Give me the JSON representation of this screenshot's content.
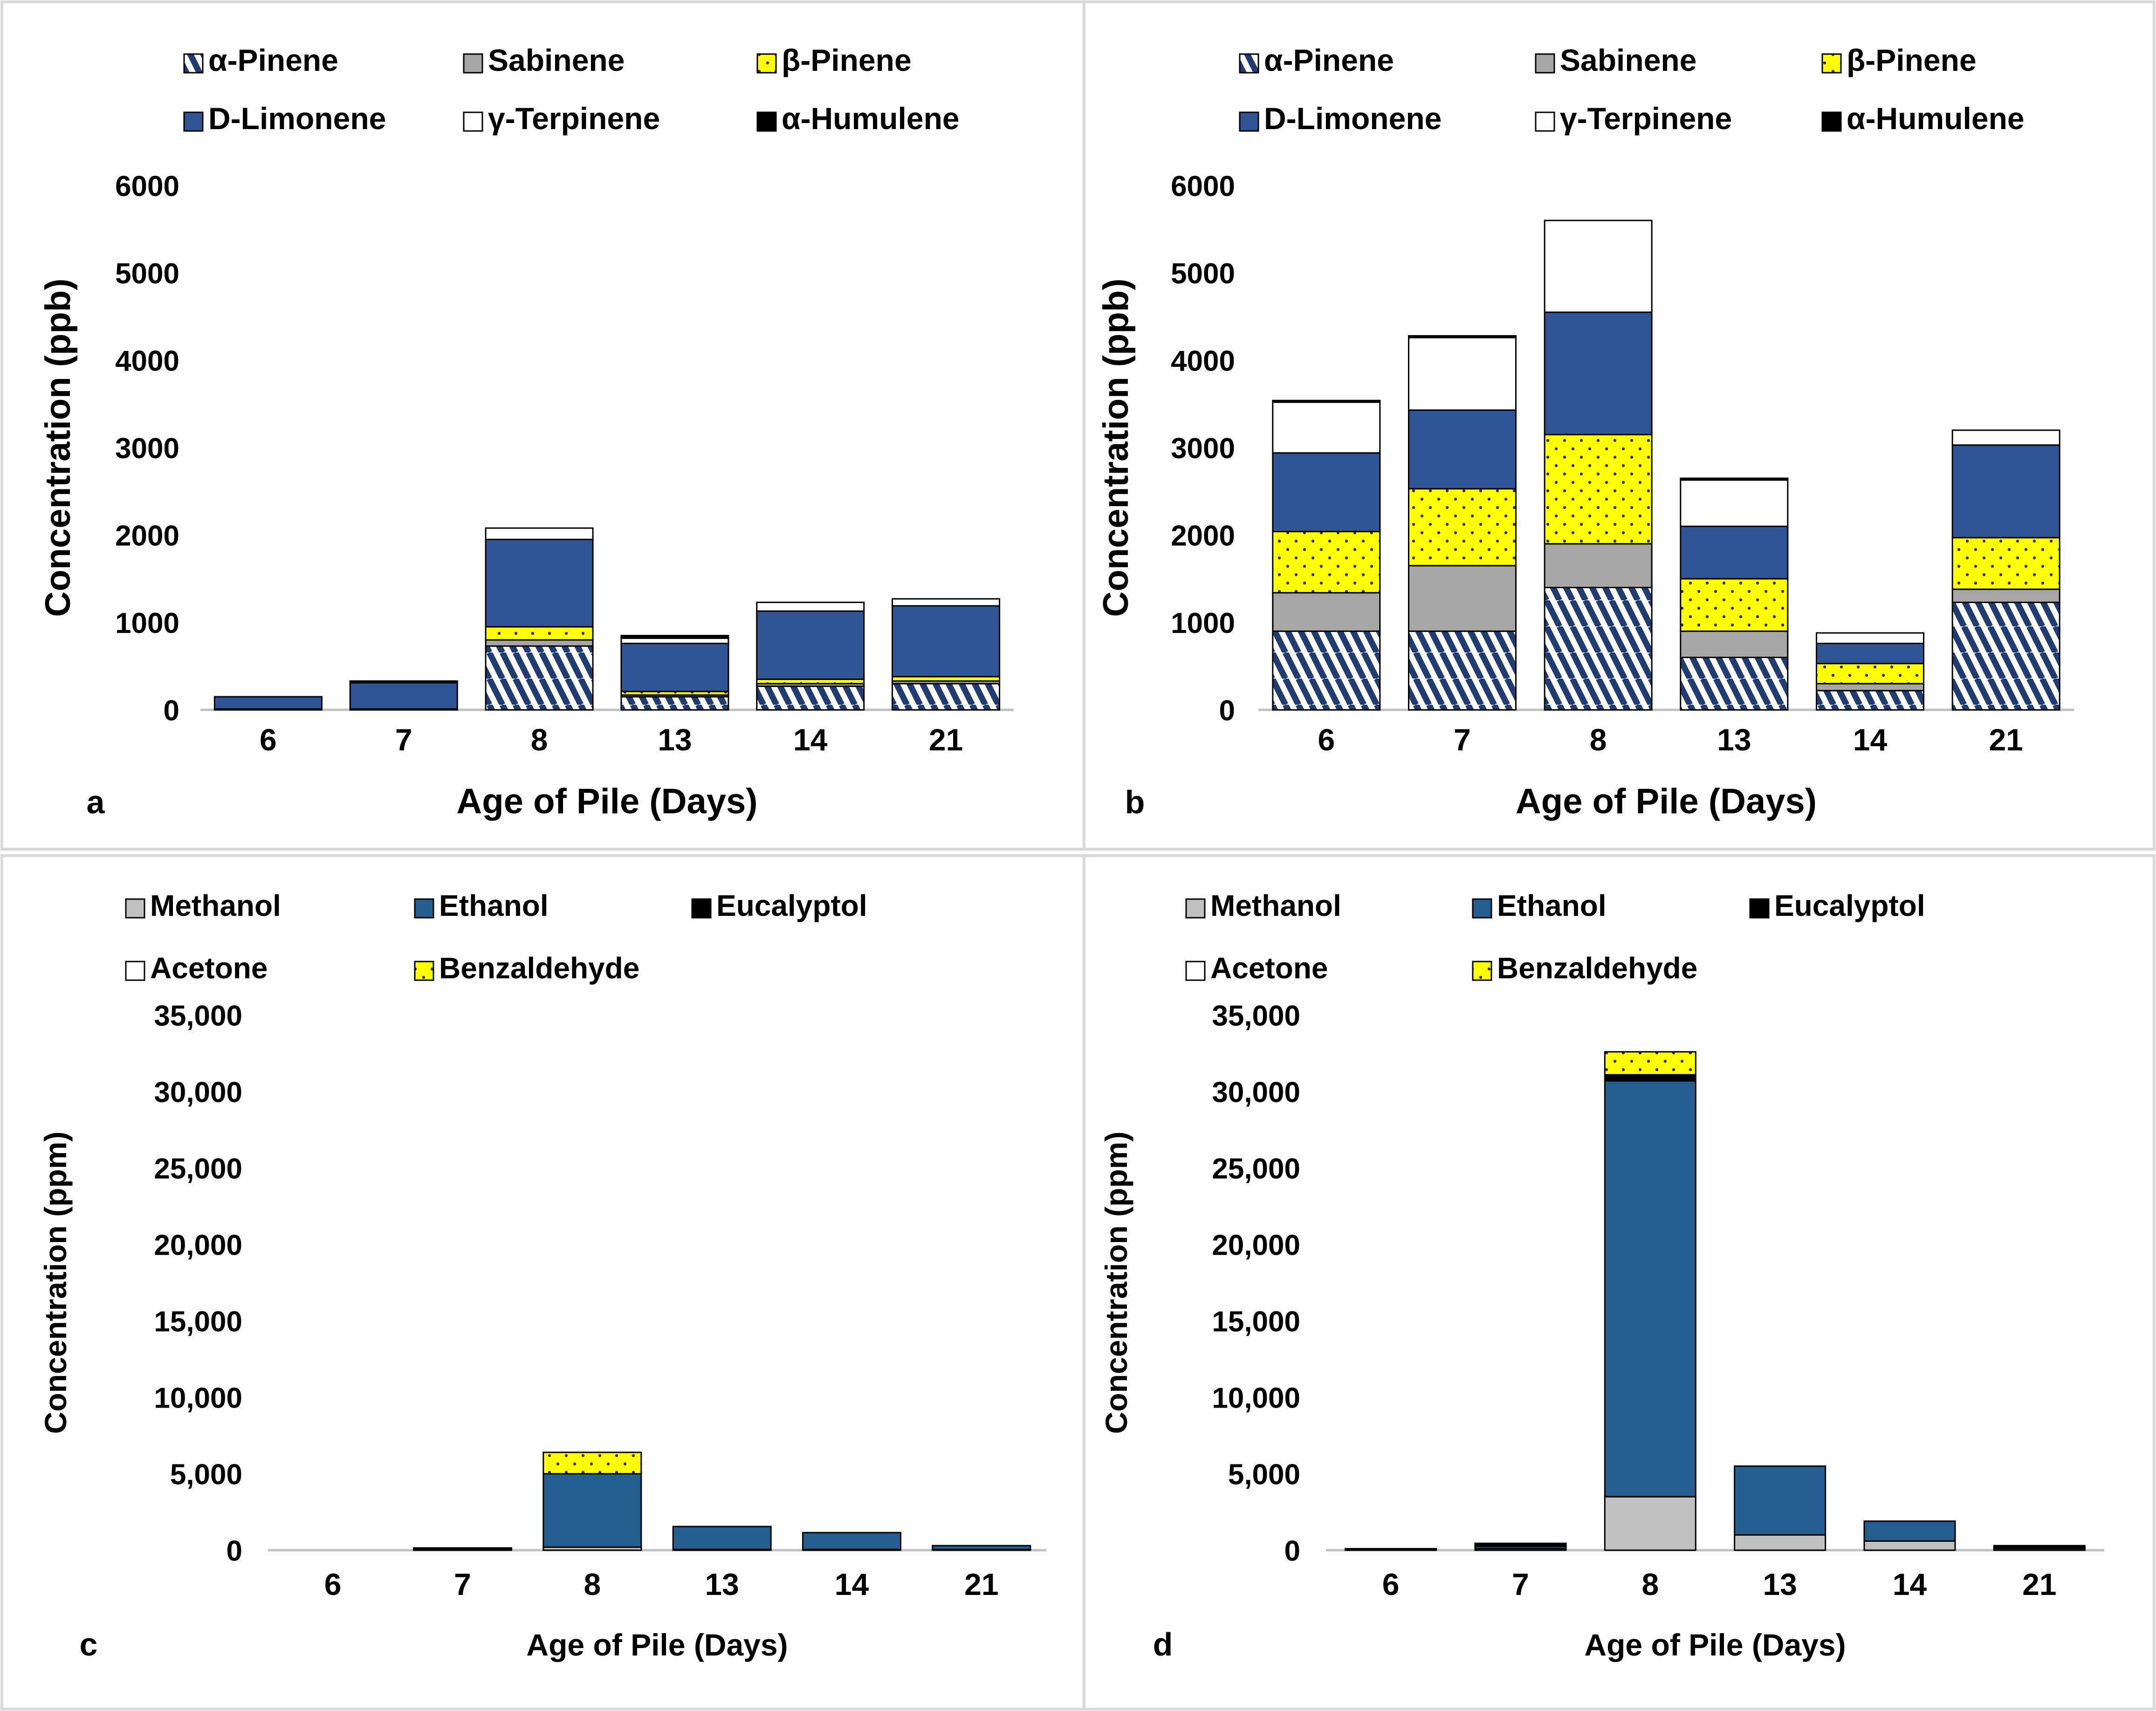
{
  "figure": {
    "panels": [
      {
        "id": "a",
        "panel_label": "a",
        "title": "",
        "type": "stacked-bar",
        "xlabel": "Age of Pile (Days)",
        "ylabel": "Concentration (ppb)",
        "ylim": [
          0,
          6000
        ],
        "yticks": [
          0,
          1000,
          2000,
          3000,
          4000,
          5000,
          6000
        ],
        "ytick_labels": [
          "0",
          "1000",
          "2000",
          "3000",
          "4000",
          "5000",
          "6000"
        ],
        "categories": [
          "6",
          "7",
          "8",
          "13",
          "14",
          "21"
        ],
        "legend_placement": "top",
        "series": [
          {
            "name": "α-Pinene",
            "style": "hatch",
            "values": [
              10,
              10,
              730,
              150,
              270,
              300
            ]
          },
          {
            "name": "Sabinene",
            "style": "gray",
            "values": [
              0,
              0,
              70,
              20,
              30,
              30
            ]
          },
          {
            "name": "β-Pinene",
            "style": "dots",
            "values": [
              0,
              0,
              150,
              40,
              50,
              50
            ]
          },
          {
            "name": "D-Limonene",
            "style": "blue",
            "values": [
              140,
              300,
              1000,
              550,
              780,
              810
            ]
          },
          {
            "name": "γ-Terpinene",
            "style": "white",
            "values": [
              0,
              0,
              130,
              60,
              100,
              80
            ]
          },
          {
            "name": "α-Humulene",
            "style": "black",
            "values": [
              0,
              20,
              0,
              30,
              0,
              0
            ]
          }
        ]
      },
      {
        "id": "b",
        "panel_label": "b",
        "title": "",
        "type": "stacked-bar",
        "xlabel": "Age of Pile (Days)",
        "ylabel": "Concentration (ppb)",
        "ylim": [
          0,
          6000
        ],
        "yticks": [
          0,
          1000,
          2000,
          3000,
          4000,
          5000,
          6000
        ],
        "ytick_labels": [
          "0",
          "1000",
          "2000",
          "3000",
          "4000",
          "5000",
          "6000"
        ],
        "categories": [
          "6",
          "7",
          "8",
          "13",
          "14",
          "21"
        ],
        "legend_placement": "top",
        "series": [
          {
            "name": "α-Pinene",
            "style": "hatch",
            "values": [
              900,
              900,
              1400,
              600,
              220,
              1230
            ]
          },
          {
            "name": "Sabinene",
            "style": "gray",
            "values": [
              440,
              750,
              500,
              300,
              80,
              150
            ]
          },
          {
            "name": "β-Pinene",
            "style": "dots",
            "values": [
              700,
              880,
              1250,
              600,
              230,
              590
            ]
          },
          {
            "name": "D-Limonene",
            "style": "blue",
            "values": [
              900,
              900,
              1400,
              600,
              230,
              1060
            ]
          },
          {
            "name": "γ-Terpinene",
            "style": "white",
            "values": [
              580,
              830,
              1050,
              530,
              120,
              170
            ]
          },
          {
            "name": "α-Humulene",
            "style": "black",
            "values": [
              20,
              20,
              0,
              20,
              0,
              0
            ]
          }
        ]
      },
      {
        "id": "c",
        "panel_label": "c",
        "title": "",
        "type": "stacked-bar",
        "xlabel": "Age of Pile (Days)",
        "ylabel": "Concentration (ppm)",
        "ylim": [
          0,
          35000
        ],
        "yticks": [
          0,
          5000,
          10000,
          15000,
          20000,
          25000,
          30000,
          35000
        ],
        "ytick_labels": [
          "0",
          "5,000",
          "10,000",
          "15,000",
          "20,000",
          "25,000",
          "30,000",
          "35,000"
        ],
        "categories": [
          "6",
          "7",
          "8",
          "13",
          "14",
          "21"
        ],
        "legend_placement": "top",
        "series": [
          {
            "name": "Methanol",
            "style": "lightgray",
            "values": [
              0,
              50,
              200,
              50,
              50,
              50
            ]
          },
          {
            "name": "Ethanol",
            "style": "steelblue",
            "values": [
              0,
              100,
              4800,
              1500,
              1100,
              250
            ]
          },
          {
            "name": "Eucalyptol",
            "style": "black",
            "values": [
              0,
              0,
              0,
              0,
              0,
              0
            ]
          },
          {
            "name": "Acetone",
            "style": "white",
            "values": [
              0,
              0,
              0,
              0,
              0,
              0
            ]
          },
          {
            "name": "Benzaldehyde",
            "style": "dots",
            "values": [
              0,
              0,
              1400,
              0,
              0,
              0
            ]
          }
        ]
      },
      {
        "id": "d",
        "panel_label": "d",
        "title": "",
        "type": "stacked-bar",
        "xlabel": "Age of Pile (Days)",
        "ylabel": "Concentration (ppm)",
        "ylim": [
          0,
          35000
        ],
        "yticks": [
          0,
          5000,
          10000,
          15000,
          20000,
          25000,
          30000,
          35000
        ],
        "ytick_labels": [
          "0",
          "5,000",
          "10,000",
          "15,000",
          "20,000",
          "25,000",
          "30,000",
          "35,000"
        ],
        "categories": [
          "6",
          "7",
          "8",
          "13",
          "14",
          "21"
        ],
        "legend_placement": "top",
        "series": [
          {
            "name": "Methanol",
            "style": "lightgray",
            "values": [
              50,
              100,
              3500,
              1000,
              600,
              100
            ]
          },
          {
            "name": "Ethanol",
            "style": "steelblue",
            "values": [
              50,
              150,
              27200,
              4500,
              1300,
              100
            ]
          },
          {
            "name": "Eucalyptol",
            "style": "black",
            "values": [
              0,
              200,
              400,
              0,
              0,
              100
            ]
          },
          {
            "name": "Acetone",
            "style": "white",
            "values": [
              0,
              0,
              0,
              0,
              0,
              0
            ]
          },
          {
            "name": "Benzaldehyde",
            "style": "dots",
            "values": [
              0,
              0,
              1500,
              0,
              0,
              0
            ]
          }
        ]
      }
    ],
    "colors": {
      "hatch_blue": "#1f3b70",
      "gray": "#a6a6a6",
      "yellow": "#ffff00",
      "dot": "#333333",
      "blue": "#2f5597",
      "steelblue": "#245e8f",
      "lightgray": "#c0c0c0",
      "black": "#000000",
      "white": "#ffffff",
      "axis": "#bfbfbf",
      "border": "#d9d9d9",
      "text": "#000000"
    }
  },
  "chart_data": [
    {
      "type": "bar",
      "stacked": true,
      "panel": "a",
      "title": "",
      "xlabel": "Age of Pile (Days)",
      "ylabel": "Concentration (ppb)",
      "ylim": [
        0,
        6000
      ],
      "categories": [
        "6",
        "7",
        "8",
        "13",
        "14",
        "21"
      ],
      "series": [
        {
          "name": "α-Pinene",
          "values": [
            10,
            10,
            730,
            150,
            270,
            300
          ]
        },
        {
          "name": "Sabinene",
          "values": [
            0,
            0,
            70,
            20,
            30,
            30
          ]
        },
        {
          "name": "β-Pinene",
          "values": [
            0,
            0,
            150,
            40,
            50,
            50
          ]
        },
        {
          "name": "D-Limonene",
          "values": [
            140,
            300,
            1000,
            550,
            780,
            810
          ]
        },
        {
          "name": "γ-Terpinene",
          "values": [
            0,
            0,
            130,
            60,
            100,
            80
          ]
        },
        {
          "name": "α-Humulene",
          "values": [
            0,
            20,
            0,
            30,
            0,
            0
          ]
        }
      ]
    },
    {
      "type": "bar",
      "stacked": true,
      "panel": "b",
      "title": "",
      "xlabel": "Age of Pile (Days)",
      "ylabel": "Concentration (ppb)",
      "ylim": [
        0,
        6000
      ],
      "categories": [
        "6",
        "7",
        "8",
        "13",
        "14",
        "21"
      ],
      "series": [
        {
          "name": "α-Pinene",
          "values": [
            900,
            900,
            1400,
            600,
            220,
            1230
          ]
        },
        {
          "name": "Sabinene",
          "values": [
            440,
            750,
            500,
            300,
            80,
            150
          ]
        },
        {
          "name": "β-Pinene",
          "values": [
            700,
            880,
            1250,
            600,
            230,
            590
          ]
        },
        {
          "name": "D-Limonene",
          "values": [
            900,
            900,
            1400,
            600,
            230,
            1060
          ]
        },
        {
          "name": "γ-Terpinene",
          "values": [
            580,
            830,
            1050,
            530,
            120,
            170
          ]
        },
        {
          "name": "α-Humulene",
          "values": [
            20,
            20,
            0,
            20,
            0,
            0
          ]
        }
      ]
    },
    {
      "type": "bar",
      "stacked": true,
      "panel": "c",
      "title": "",
      "xlabel": "Age of Pile (Days)",
      "ylabel": "Concentration (ppm)",
      "ylim": [
        0,
        35000
      ],
      "categories": [
        "6",
        "7",
        "8",
        "13",
        "14",
        "21"
      ],
      "series": [
        {
          "name": "Methanol",
          "values": [
            0,
            50,
            200,
            50,
            50,
            50
          ]
        },
        {
          "name": "Ethanol",
          "values": [
            0,
            100,
            4800,
            1500,
            1100,
            250
          ]
        },
        {
          "name": "Eucalyptol",
          "values": [
            0,
            0,
            0,
            0,
            0,
            0
          ]
        },
        {
          "name": "Acetone",
          "values": [
            0,
            0,
            0,
            0,
            0,
            0
          ]
        },
        {
          "name": "Benzaldehyde",
          "values": [
            0,
            0,
            1400,
            0,
            0,
            0
          ]
        }
      ]
    },
    {
      "type": "bar",
      "stacked": true,
      "panel": "d",
      "title": "",
      "xlabel": "Age of Pile (Days)",
      "ylabel": "Concentration (ppm)",
      "ylim": [
        0,
        35000
      ],
      "categories": [
        "6",
        "7",
        "8",
        "13",
        "14",
        "21"
      ],
      "series": [
        {
          "name": "Methanol",
          "values": [
            50,
            100,
            3500,
            1000,
            600,
            100
          ]
        },
        {
          "name": "Ethanol",
          "values": [
            50,
            150,
            27200,
            4500,
            1300,
            100
          ]
        },
        {
          "name": "Eucalyptol",
          "values": [
            0,
            200,
            400,
            0,
            0,
            100
          ]
        },
        {
          "name": "Acetone",
          "values": [
            0,
            0,
            0,
            0,
            0,
            0
          ]
        },
        {
          "name": "Benzaldehyde",
          "values": [
            0,
            0,
            1500,
            0,
            0,
            0
          ]
        }
      ]
    }
  ]
}
